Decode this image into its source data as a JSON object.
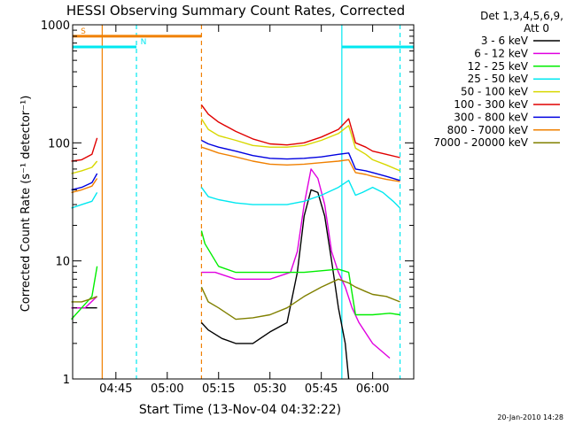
{
  "chart_data": {
    "type": "line",
    "title": "HESSI Observing Summary Count Rates, Corrected",
    "xlabel": "Start Time (13-Nov-04 04:32:22)",
    "ylabel": "Corrected Count Rate (s⁻¹ detector⁻¹)",
    "y_scale": "log",
    "ylim": [
      1,
      1000
    ],
    "xlim": [
      "04:32:22",
      "06:12"
    ],
    "x_ticks": [
      "04:45",
      "05:00",
      "05:15",
      "05:30",
      "05:45",
      "06:00"
    ],
    "y_ticks": [
      "1",
      "10",
      "100",
      "1000"
    ],
    "grid": false,
    "legend_position": "right-outside",
    "legend_header": [
      "Det 1,3,4,5,6,9,",
      "Att 0"
    ],
    "timestamp": "20-Jan-2010 14:28",
    "data_gap": [
      "04:40",
      "05:10"
    ],
    "series": [
      {
        "name": "3 - 6 keV",
        "color": "#000000",
        "x": [
          "04:32",
          "04:34",
          "04:36",
          "04:38",
          "04:39:30",
          "05:10",
          "05:12",
          "05:16",
          "05:20",
          "05:25",
          "05:30",
          "05:35",
          "05:38",
          "05:40",
          "05:42",
          "05:44",
          "05:46",
          "05:48",
          "05:50",
          "05:52",
          "05:53"
        ],
        "y": [
          4,
          4,
          4,
          4,
          4,
          3,
          2.6,
          2.2,
          2,
          2,
          2.5,
          3,
          8,
          24,
          40,
          38,
          24,
          10,
          4,
          2,
          1
        ]
      },
      {
        "name": "6 - 12 keV",
        "color": "#e000e0",
        "x": [
          "04:32",
          "04:36",
          "04:39:30",
          "05:10",
          "05:14",
          "05:20",
          "05:30",
          "05:36",
          "05:38",
          "05:40",
          "05:42",
          "05:44",
          "05:46",
          "05:48",
          "05:50",
          "05:52",
          "05:54",
          "05:56",
          "06:00",
          "06:05"
        ],
        "y": [
          4,
          4,
          5,
          8,
          8,
          7,
          7,
          8,
          12,
          30,
          60,
          50,
          30,
          12,
          8,
          6,
          4,
          3,
          2,
          1.5
        ]
      },
      {
        "name": "12 - 25 keV",
        "color": "#00ee00",
        "x": [
          "04:32",
          "04:35",
          "04:38",
          "04:39:30",
          "05:10",
          "05:11",
          "05:15",
          "05:20",
          "05:30",
          "05:40",
          "05:50",
          "05:53",
          "05:55",
          "06:00",
          "06:05",
          "06:08"
        ],
        "y": [
          3.2,
          4,
          5,
          9,
          18,
          14,
          9,
          8,
          8,
          8,
          8.5,
          8,
          3.5,
          3.5,
          3.6,
          3.5
        ]
      },
      {
        "name": "25 - 50 keV",
        "color": "#00e8f0",
        "x": [
          "04:32",
          "04:35",
          "04:38",
          "04:39:30",
          "05:10",
          "05:12",
          "05:15",
          "05:20",
          "05:25",
          "05:30",
          "05:35",
          "05:40",
          "05:45",
          "05:50",
          "05:53",
          "05:55",
          "05:57",
          "06:00",
          "06:03",
          "06:06",
          "06:08"
        ],
        "y": [
          28,
          30,
          32,
          38,
          42,
          35,
          33,
          31,
          30,
          30,
          30,
          32,
          36,
          42,
          48,
          36,
          38,
          42,
          38,
          32,
          28
        ]
      },
      {
        "name": "50 - 100 keV",
        "color": "#d8d800",
        "x": [
          "04:32",
          "04:35",
          "04:38",
          "04:39:30",
          "05:10",
          "05:12",
          "05:15",
          "05:20",
          "05:25",
          "05:30",
          "05:35",
          "05:40",
          "05:45",
          "05:50",
          "05:53",
          "05:55",
          "05:58",
          "06:00",
          "06:04",
          "06:08"
        ],
        "y": [
          55,
          58,
          62,
          70,
          160,
          130,
          115,
          105,
          95,
          92,
          92,
          95,
          105,
          120,
          140,
          90,
          80,
          72,
          65,
          58
        ]
      },
      {
        "name": "100 - 300 keV",
        "color": "#e00000",
        "x": [
          "04:32",
          "04:35",
          "04:38",
          "04:39:30",
          "05:10",
          "05:12",
          "05:15",
          "05:20",
          "05:25",
          "05:30",
          "05:35",
          "05:40",
          "05:45",
          "05:50",
          "05:53",
          "05:55",
          "05:58",
          "06:00",
          "06:04",
          "06:08"
        ],
        "y": [
          70,
          72,
          80,
          110,
          210,
          175,
          150,
          125,
          108,
          98,
          96,
          100,
          112,
          130,
          160,
          100,
          92,
          85,
          80,
          75
        ]
      },
      {
        "name": "300 - 800 keV",
        "color": "#0000e0",
        "x": [
          "04:32",
          "04:35",
          "04:38",
          "04:39:30",
          "05:10",
          "05:12",
          "05:15",
          "05:20",
          "05:25",
          "05:30",
          "05:35",
          "05:40",
          "05:45",
          "05:50",
          "05:53",
          "05:55",
          "05:58",
          "06:00",
          "06:04",
          "06:08"
        ],
        "y": [
          40,
          42,
          46,
          55,
          105,
          98,
          92,
          85,
          78,
          74,
          73,
          74,
          76,
          80,
          82,
          60,
          58,
          56,
          52,
          48
        ]
      },
      {
        "name": "800 - 7000 keV",
        "color": "#f08000",
        "x": [
          "04:32",
          "04:35",
          "04:38",
          "04:39:30",
          "05:10",
          "05:12",
          "05:15",
          "05:20",
          "05:25",
          "05:30",
          "05:35",
          "05:40",
          "05:45",
          "05:50",
          "05:53",
          "05:55",
          "05:58",
          "06:00",
          "06:04",
          "06:08"
        ],
        "y": [
          38,
          40,
          43,
          50,
          92,
          88,
          82,
          76,
          70,
          66,
          65,
          66,
          68,
          70,
          72,
          56,
          54,
          52,
          49,
          47
        ]
      },
      {
        "name": "7000 - 20000 keV",
        "color": "#808000",
        "x": [
          "04:32",
          "04:35",
          "04:38",
          "04:39:30",
          "05:10",
          "05:12",
          "05:15",
          "05:20",
          "05:25",
          "05:30",
          "05:35",
          "05:40",
          "05:45",
          "05:50",
          "05:53",
          "05:55",
          "05:58",
          "06:00",
          "06:04",
          "06:08"
        ],
        "y": [
          4.5,
          4.5,
          4.8,
          5,
          6,
          4.5,
          4,
          3.2,
          3.3,
          3.5,
          4,
          5,
          6,
          7,
          6.5,
          6,
          5.5,
          5.2,
          5,
          4.5
        ]
      }
    ],
    "flags": [
      {
        "label": "S",
        "color": "#f08000",
        "start": "04:32:22",
        "end": "05:10",
        "level": 800
      },
      {
        "label": "N",
        "color": "#00e8f0",
        "start": "04:32:22",
        "end": "04:51",
        "level": 650
      },
      {
        "label": "",
        "color": "#00e8f0",
        "start": "05:51",
        "end": "06:12",
        "level": 650
      }
    ],
    "vertical_markers": [
      {
        "time": "04:41",
        "color": "#f08000",
        "style": "solid"
      },
      {
        "time": "04:51",
        "color": "#00e8f0",
        "style": "dashed"
      },
      {
        "time": "05:10",
        "color": "#f08000",
        "style": "dashed"
      },
      {
        "time": "05:51",
        "color": "#00e8f0",
        "style": "solid"
      },
      {
        "time": "06:08",
        "color": "#00e8f0",
        "style": "dashed"
      }
    ]
  }
}
